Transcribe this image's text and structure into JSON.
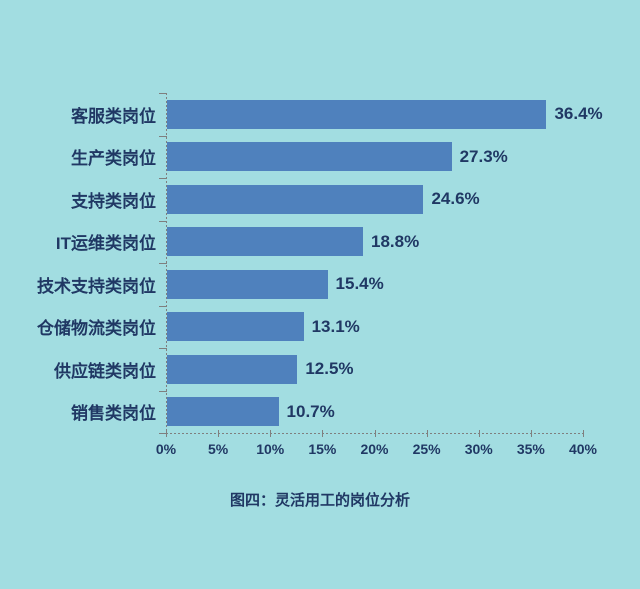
{
  "chart_data": {
    "type": "bar",
    "orientation": "horizontal",
    "title": "图四：灵活用工的岗位分析",
    "categories": [
      "客服类岗位",
      "生产类岗位",
      "支持类岗位",
      "IT运维类岗位",
      "技术支持类岗位",
      "仓储物流类岗位",
      "供应链类岗位",
      "销售类岗位"
    ],
    "values": [
      36.4,
      27.3,
      24.6,
      18.8,
      15.4,
      13.1,
      12.5,
      10.7
    ],
    "value_labels": [
      "36.4%",
      "27.3%",
      "24.6%",
      "18.8%",
      "15.4%",
      "13.1%",
      "12.5%",
      "10.7%"
    ],
    "x_ticks": [
      "0%",
      "5%",
      "10%",
      "15%",
      "20%",
      "25%",
      "30%",
      "35%",
      "40%"
    ],
    "xlim": [
      0,
      40
    ],
    "xlabel": "",
    "ylabel": "",
    "grid": "off",
    "legend": "none"
  },
  "colors": {
    "background": "#a2dde1",
    "bar": "#4f81bd",
    "text": "#203864",
    "axis": "#7f7f7f"
  }
}
